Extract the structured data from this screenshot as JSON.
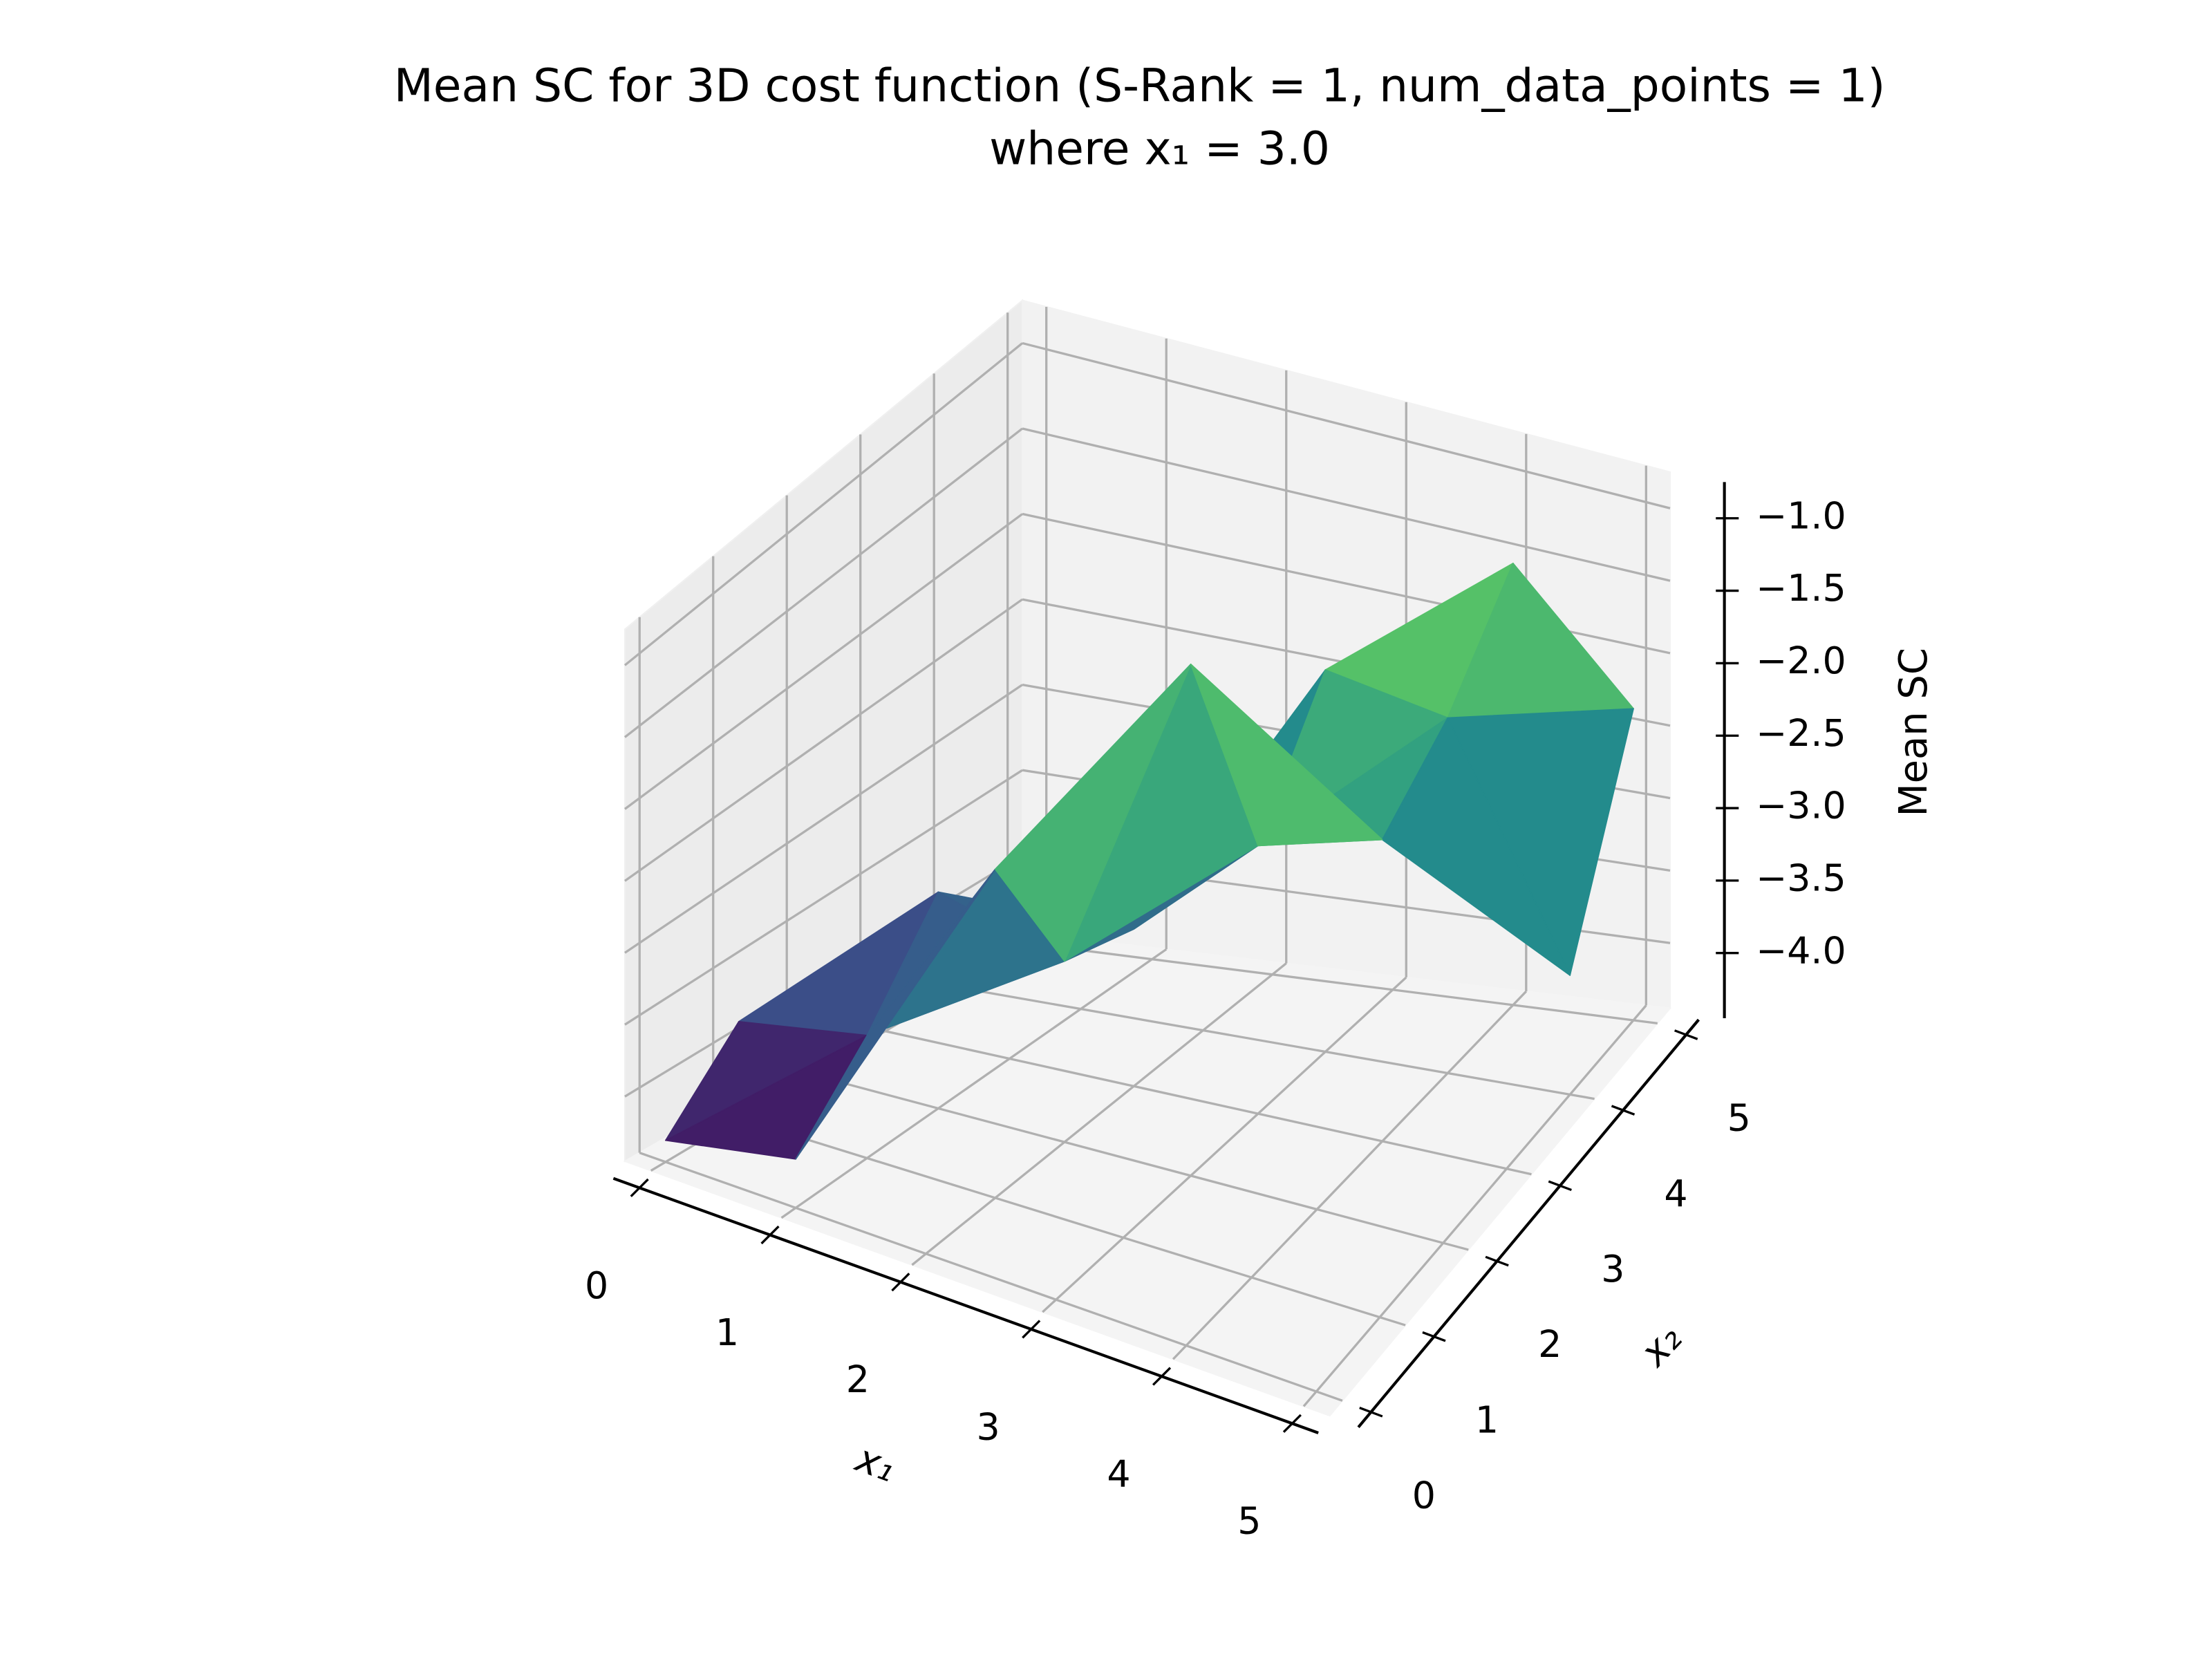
{
  "chart_data": {
    "type": "surface",
    "title": "Mean SC for 3D cost function (S-Rank = 1, num_data_points = 1)",
    "subtitle": "where x₁ = 3.0",
    "xlabel": "x₁",
    "ylabel": "x₂",
    "zlabel": "Mean SC",
    "x": [
      0,
      1,
      2,
      3,
      4,
      5
    ],
    "y": [
      0,
      1,
      2,
      3,
      4,
      5
    ],
    "z": [
      [
        -4.3,
        -4.1,
        null,
        null,
        null,
        null
      ],
      [
        -3.8,
        -3.6,
        -2.1,
        null,
        null,
        null
      ],
      [
        null,
        -3.0,
        -3.2,
        -0.8,
        null,
        null
      ],
      [
        null,
        null,
        -3.4,
        -2.6,
        -2.3,
        null
      ],
      [
        null,
        null,
        null,
        -1.9,
        -2.0,
        -3.6
      ],
      [
        null,
        null,
        null,
        null,
        -1.5,
        -2.3
      ]
    ],
    "colormap": "viridis",
    "xlim": [
      -0.2,
      5.2
    ],
    "ylim": [
      -0.2,
      5.2
    ],
    "zlim": [
      -4.45,
      -0.75
    ],
    "xticks": [
      0,
      1,
      2,
      3,
      4,
      5
    ],
    "yticks": [
      0,
      1,
      2,
      3,
      4,
      5
    ],
    "zticks": [
      {
        "value": -4.0,
        "label": "−4.0"
      },
      {
        "value": -3.5,
        "label": "−3.5"
      },
      {
        "value": -3.0,
        "label": "−3.0"
      },
      {
        "value": -2.5,
        "label": "−2.5"
      },
      {
        "value": -2.0,
        "label": "−2.0"
      },
      {
        "value": -1.5,
        "label": "−1.5"
      },
      {
        "value": -1.0,
        "label": "−1.0"
      }
    ],
    "grid": true
  }
}
